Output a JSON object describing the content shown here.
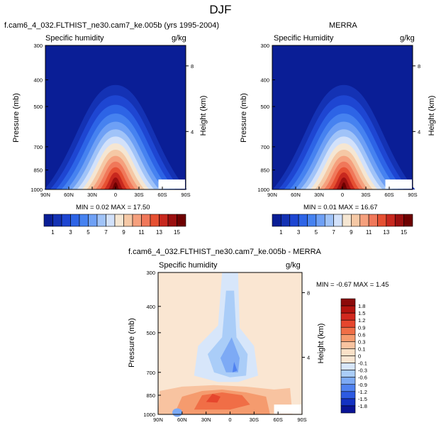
{
  "page_title": "DJF",
  "colorbar_labels_top": [
    "1",
    "3",
    "5",
    "7",
    "9",
    "11",
    "13",
    "15"
  ],
  "colorbar_labels_diff": [
    "1.8",
    "1.5",
    "1.2",
    "0.9",
    "0.6",
    "0.3",
    "0.1",
    "0",
    "-0.1",
    "-0.3",
    "-0.6",
    "-0.9",
    "-1.2",
    "-1.5",
    "-1.8"
  ],
  "colors_top": [
    "#0a1e96",
    "#1432b4",
    "#1e46d2",
    "#2d64e6",
    "#4682f0",
    "#6ea0f5",
    "#a0c3f8",
    "#d2e1fa",
    "#f5e6d2",
    "#f5c8a5",
    "#f5a07d",
    "#f0785a",
    "#e65032",
    "#c8281e",
    "#9b0f0f",
    "#6e0000"
  ],
  "colors_diff": [
    "#8c0a0a",
    "#b4140f",
    "#d2281e",
    "#e6462d",
    "#f06e46",
    "#f59b6e",
    "#f8c3a0",
    "#fae1c8",
    "#fae6d2",
    "#d7e6fa",
    "#aacdf8",
    "#7daaf5",
    "#5082f0",
    "#2d5ae1",
    "#1432c3",
    "#0a1496"
  ],
  "chart_data": [
    {
      "type": "heatmap",
      "panel_title": "f.cam6_4_032.FLTHIST_ne30.cam7_ke.005b (yrs 1995-2004)",
      "left_label": "Specific humidity",
      "right_label": "g/kg",
      "xlabel": "",
      "ylabel": "Pressure (mb)",
      "y2label": "Height (km)",
      "x_ticks": [
        "90N",
        "60N",
        "30N",
        "0",
        "30S",
        "60S",
        "90S"
      ],
      "y_ticks": [
        "300",
        "400",
        "500",
        "700",
        "850",
        "1000"
      ],
      "y2_ticks": [
        "8",
        "4"
      ],
      "stats": "MIN =  0.02  MAX = 17.50",
      "min": 0.02,
      "max": 17.5,
      "ylim": [
        1000,
        300
      ],
      "xlim": [
        90,
        -90
      ],
      "levels": [
        1,
        3,
        5,
        7,
        9,
        11,
        13,
        15
      ]
    },
    {
      "type": "heatmap",
      "panel_title": "MERRA",
      "left_label": "Specific Humidity",
      "right_label": "g/kg",
      "xlabel": "",
      "ylabel": "Pressure (mb)",
      "y2label": "Height (km)",
      "x_ticks": [
        "90N",
        "60N",
        "30N",
        "0",
        "30S",
        "60S",
        "90S"
      ],
      "y_ticks": [
        "300",
        "400",
        "500",
        "700",
        "850",
        "1000"
      ],
      "y2_ticks": [
        "8",
        "4"
      ],
      "stats": "MIN =  0.01  MAX = 16.67",
      "min": 0.01,
      "max": 16.67,
      "ylim": [
        1000,
        300
      ],
      "xlim": [
        90,
        -90
      ],
      "levels": [
        1,
        3,
        5,
        7,
        9,
        11,
        13,
        15
      ]
    },
    {
      "type": "heatmap",
      "panel_title": "f.cam6_4_032.FLTHIST_ne30.cam7_ke.005b - MERRA",
      "left_label": "Specific humidity",
      "right_label": "g/kg",
      "xlabel": "",
      "ylabel": "Pressure (mb)",
      "y2label": "Height (km)",
      "x_ticks": [
        "90N",
        "60N",
        "30N",
        "0",
        "30S",
        "60S",
        "90S"
      ],
      "y_ticks": [
        "300",
        "400",
        "500",
        "700",
        "850",
        "1000"
      ],
      "y2_ticks": [
        "8",
        "4"
      ],
      "stats": "MIN = -0.67  MAX =  1.45",
      "min": -0.67,
      "max": 1.45,
      "ylim": [
        1000,
        300
      ],
      "xlim": [
        90,
        -90
      ],
      "levels": [
        -1.8,
        -1.5,
        -1.2,
        -0.9,
        -0.6,
        -0.3,
        -0.1,
        0,
        0.1,
        0.3,
        0.6,
        0.9,
        1.2,
        1.5,
        1.8
      ]
    }
  ]
}
